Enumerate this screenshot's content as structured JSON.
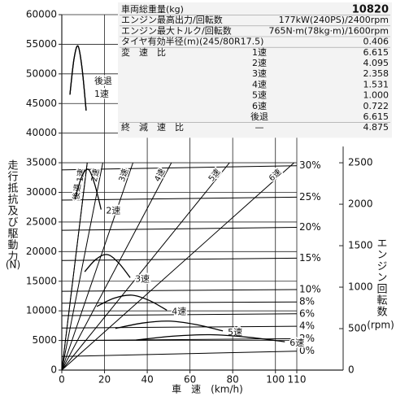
{
  "chart_data": {
    "type": "line",
    "x_label": "車　速　(km/h)",
    "y_label": "走行抵抗及び駆動力",
    "y_label_unit": "(N)",
    "y2_label": "エンジン回転数",
    "y2_label_unit": "(rpm)",
    "xlim": [
      0,
      110
    ],
    "xticks": [
      0,
      20,
      40,
      60,
      80,
      100,
      110
    ],
    "ylim": [
      0,
      60000
    ],
    "yticks": [
      0,
      5000,
      10000,
      15000,
      20000,
      25000,
      30000,
      35000,
      40000,
      45000,
      50000,
      55000,
      60000
    ],
    "y2lim": [
      0,
      4286
    ],
    "y2ticks": [
      0,
      500,
      1000,
      1500,
      2000,
      2500
    ],
    "grid": true,
    "color": "#000000",
    "force_curves": [
      {
        "name": "後退",
        "x": [
          3.8,
          5.7,
          7.6,
          9.5,
          11.4
        ],
        "values": [
          46500,
          52500,
          54700,
          50900,
          43800
        ]
      },
      {
        "name": "1速",
        "x": [
          3.8,
          5.7,
          7.6,
          9.5,
          11.4
        ],
        "values": [
          46500,
          52500,
          54700,
          50900,
          43800
        ]
      },
      {
        "name": "2速",
        "x": [
          6.1,
          9.2,
          12.3,
          15.3,
          18.4
        ],
        "values": [
          28800,
          32500,
          33900,
          31500,
          27100
        ]
      },
      {
        "name": "3速",
        "x": [
          10.7,
          16.0,
          21.3,
          26.6,
          32.0
        ],
        "values": [
          16600,
          18700,
          19500,
          18100,
          15600
        ]
      },
      {
        "name": "4速",
        "x": [
          16.4,
          24.6,
          32.8,
          41.0,
          49.2
        ],
        "values": [
          10750,
          12150,
          12650,
          11750,
          10100
        ]
      },
      {
        "name": "5速",
        "x": [
          25.1,
          37.7,
          50.2,
          62.8,
          75.4
        ],
        "values": [
          7030,
          7940,
          8270,
          7690,
          6620
        ]
      },
      {
        "name": "6速",
        "x": [
          34.8,
          52.2,
          69.6,
          87.0,
          104.4
        ],
        "values": [
          5070,
          5730,
          5970,
          5550,
          4780
        ]
      }
    ],
    "rpm_lines": [
      {
        "name": "後退",
        "axis": "y2",
        "x": [
          0,
          11.9
        ],
        "values": [
          0,
          2500
        ]
      },
      {
        "name": "1速",
        "axis": "y2",
        "x": [
          0,
          11.9
        ],
        "values": [
          0,
          2500
        ]
      },
      {
        "name": "2速",
        "axis": "y2",
        "x": [
          0,
          19.2
        ],
        "values": [
          0,
          2500
        ]
      },
      {
        "name": "3速",
        "axis": "y2",
        "x": [
          0,
          33.3
        ],
        "values": [
          0,
          2500
        ]
      },
      {
        "name": "4速",
        "axis": "y2",
        "x": [
          0,
          51.3
        ],
        "values": [
          0,
          2500
        ]
      },
      {
        "name": "5速",
        "axis": "y2",
        "x": [
          0,
          78.5
        ],
        "values": [
          0,
          2500
        ]
      },
      {
        "name": "6速",
        "axis": "y2",
        "x": [
          0,
          108.7
        ],
        "values": [
          0,
          2500
        ]
      }
    ],
    "gradient_lines": [
      {
        "name": "30%",
        "x": [
          0,
          110
        ],
        "values": [
          33800,
          34500
        ]
      },
      {
        "name": "25%",
        "x": [
          0,
          110
        ],
        "values": [
          28700,
          29200
        ]
      },
      {
        "name": "20%",
        "x": [
          0,
          110
        ],
        "values": [
          23600,
          24100
        ]
      },
      {
        "name": "15%",
        "x": [
          0,
          110
        ],
        "values": [
          18500,
          18900
        ]
      },
      {
        "name": "10%",
        "x": [
          0,
          110
        ],
        "values": [
          13300,
          13600
        ]
      },
      {
        "name": "8%",
        "x": [
          0,
          110
        ],
        "values": [
          11300,
          11500
        ]
      },
      {
        "name": "6%",
        "x": [
          0,
          110
        ],
        "values": [
          9200,
          9500
        ]
      },
      {
        "name": "4%",
        "x": [
          0,
          110
        ],
        "values": [
          7100,
          7400
        ]
      },
      {
        "name": "2%",
        "x": [
          0,
          110
        ],
        "values": [
          5000,
          5300
        ]
      },
      {
        "name": "0%",
        "x": [
          0,
          110
        ],
        "values": [
          2300,
          3200
        ]
      }
    ]
  },
  "spec_table": {
    "rows": [
      {
        "label": "車両総重量(kg)",
        "value": "10820"
      },
      {
        "label": "エンジン最高出力/回転数",
        "value": "177kW(240PS)/2400rpm"
      },
      {
        "label": "エンジン最大トルク/回転数",
        "value": "765N·m(78kg·m)/1600rpm"
      },
      {
        "label": "タイヤ有効半径(m)(245/80R17.5)",
        "value": "0.406"
      },
      {
        "label": "変　速　比",
        "gear": "1速",
        "value": "6.615"
      },
      {
        "gear": "2速",
        "value": "4.095"
      },
      {
        "gear": "3速",
        "value": "2.358"
      },
      {
        "gear": "4速",
        "value": "1.531"
      },
      {
        "gear": "5速",
        "value": "1.000"
      },
      {
        "gear": "6速",
        "value": "0.722"
      },
      {
        "gear": "後退",
        "value": "6.615"
      },
      {
        "label": "終　減　速　比",
        "gear": "—",
        "value": "4.875"
      }
    ]
  }
}
